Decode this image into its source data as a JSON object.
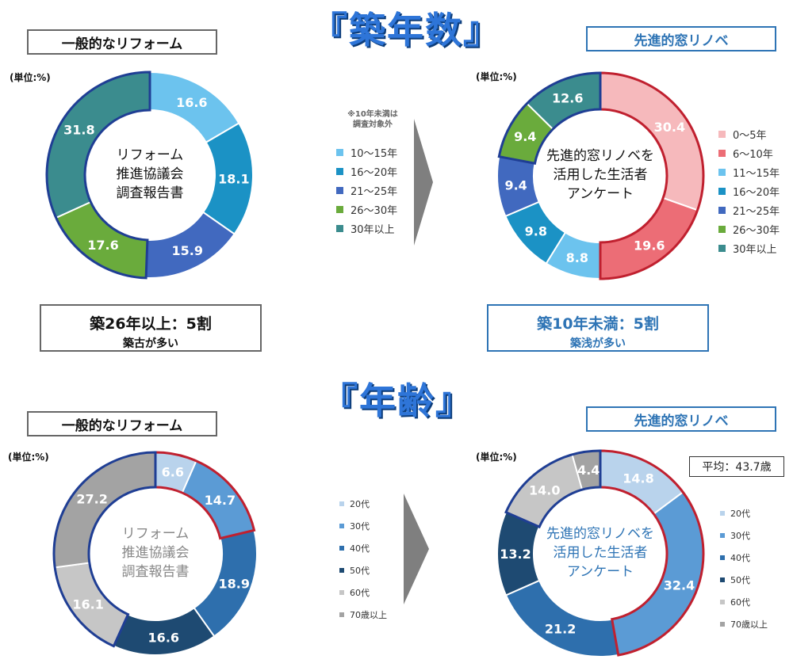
{
  "titles": {
    "building_age": "『築年数』",
    "age": "『年齢』"
  },
  "labels": {
    "general_reform": "一般的なリフォーム",
    "senshin": "先進的窓リノベ",
    "unit": "(単位:%)",
    "center_left": [
      "リフォーム",
      "推進協議会",
      "調査報告書"
    ],
    "center_right": [
      "先進的窓リノベを",
      "活用した生活者",
      "アンケート"
    ],
    "note": [
      "※10年未満は",
      "調査対象外"
    ],
    "average": "平均：43.7歳"
  },
  "summaries": {
    "left": {
      "line1": "築26年以上：5割",
      "line2": "築古が多い"
    },
    "right": {
      "line1": "築10年未満：5割",
      "line2": "築浅が多い"
    }
  },
  "legends": {
    "age_mid": [
      {
        "label": "10～15年",
        "color": "#6cc3ee"
      },
      {
        "label": "16～20年",
        "color": "#1b92c5"
      },
      {
        "label": "21～25年",
        "color": "#4169bf"
      },
      {
        "label": "26～30年",
        "color": "#6aab3c"
      },
      {
        "label": "30年以上",
        "color": "#3b8c8e"
      }
    ],
    "age_right": [
      {
        "label": "0～5年",
        "color": "#f6b9bc"
      },
      {
        "label": "6～10年",
        "color": "#ec6d76"
      },
      {
        "label": "11～15年",
        "color": "#6cc3ee"
      },
      {
        "label": "16～20年",
        "color": "#1b92c5"
      },
      {
        "label": "21～25年",
        "color": "#4169bf"
      },
      {
        "label": "26～30年",
        "color": "#6aab3c"
      },
      {
        "label": "30年以上",
        "color": "#3b8c8e"
      }
    ],
    "gen_mid": [
      {
        "label": "20代",
        "color": "#b9d3ec"
      },
      {
        "label": "30代",
        "color": "#5b9bd5"
      },
      {
        "label": "40代",
        "color": "#2e6fad"
      },
      {
        "label": "50代",
        "color": "#1e4a72"
      },
      {
        "label": "60代",
        "color": "#c6c6c6"
      },
      {
        "label": "70歳以上",
        "color": "#a3a3a3"
      }
    ],
    "gen_right": [
      {
        "label": "20代",
        "color": "#b9d3ec"
      },
      {
        "label": "30代",
        "color": "#5b9bd5"
      },
      {
        "label": "40代",
        "color": "#2e6fad"
      },
      {
        "label": "50代",
        "color": "#1e4a72"
      },
      {
        "label": "60代",
        "color": "#c6c6c6"
      },
      {
        "label": "70歳以上",
        "color": "#a3a3a3"
      }
    ]
  },
  "chart_data": [
    {
      "type": "pie",
      "title": "一般的なリフォーム",
      "subtitle": "築年数",
      "categories": [
        "10～15年",
        "16～20年",
        "21～25年",
        "26～30年",
        "30年以上"
      ],
      "values": [
        16.6,
        18.1,
        15.9,
        17.6,
        31.8
      ],
      "colors": [
        "#6cc3ee",
        "#1b92c5",
        "#4169bf",
        "#6aab3c",
        "#3b8c8e"
      ],
      "label_colors": [
        "#ffffff",
        "#ffffff",
        "#ffffff",
        "#ffffff",
        "#ffffff"
      ],
      "highlight": {
        "indices": [
          3,
          4
        ],
        "color": "#1f3e94"
      }
    },
    {
      "type": "pie",
      "title": "先進的窓リノベ",
      "subtitle": "築年数",
      "categories": [
        "0～5年",
        "6～10年",
        "11～15年",
        "16～20年",
        "21～25年",
        "26～30年",
        "30年以上"
      ],
      "values": [
        30.4,
        19.6,
        8.8,
        9.8,
        9.4,
        9.4,
        12.6
      ],
      "colors": [
        "#f6b9bc",
        "#ec6d76",
        "#6cc3ee",
        "#1b92c5",
        "#4169bf",
        "#6aab3c",
        "#3b8c8e"
      ],
      "label_colors": [
        "#ffffff",
        "#ffffff",
        "#ffffff",
        "#ffffff",
        "#ffffff",
        "#ffffff",
        "#ffffff"
      ],
      "highlight": {
        "indices": [
          0,
          1
        ],
        "color": "#c0202f"
      },
      "highlight2": {
        "indices": [
          5,
          6
        ],
        "color": "#1f3e94"
      }
    },
    {
      "type": "pie",
      "title": "一般的なリフォーム",
      "subtitle": "年齢",
      "categories": [
        "20代",
        "30代",
        "40代",
        "50代",
        "60代",
        "70歳以上"
      ],
      "values": [
        6.6,
        14.7,
        18.9,
        16.6,
        16.1,
        27.2
      ],
      "colors": [
        "#b9d3ec",
        "#5b9bd5",
        "#2e6fad",
        "#1e4a72",
        "#c6c6c6",
        "#a3a3a3"
      ],
      "label_colors": [
        "#ffffff",
        "#ffffff",
        "#ffffff",
        "#ffffff",
        "#ffffff",
        "#ffffff"
      ],
      "highlight": {
        "indices": [
          0,
          1
        ],
        "color": "#c0202f"
      },
      "highlight2": {
        "indices": [
          4,
          5
        ],
        "color": "#1f3e94"
      }
    },
    {
      "type": "pie",
      "title": "先進的窓リノベ",
      "subtitle": "年齢",
      "categories": [
        "20代",
        "30代",
        "40代",
        "50代",
        "60代",
        "70歳以上"
      ],
      "values": [
        14.8,
        32.4,
        21.2,
        13.2,
        14.0,
        4.4
      ],
      "colors": [
        "#b9d3ec",
        "#5b9bd5",
        "#2e6fad",
        "#1e4a72",
        "#c6c6c6",
        "#a3a3a3"
      ],
      "label_colors": [
        "#ffffff",
        "#ffffff",
        "#ffffff",
        "#ffffff",
        "#ffffff",
        "#ffffff"
      ],
      "highlight": {
        "indices": [
          0,
          1
        ],
        "color": "#c0202f"
      },
      "highlight2": {
        "indices": [
          4,
          5
        ],
        "color": "#1f3e94"
      }
    }
  ]
}
